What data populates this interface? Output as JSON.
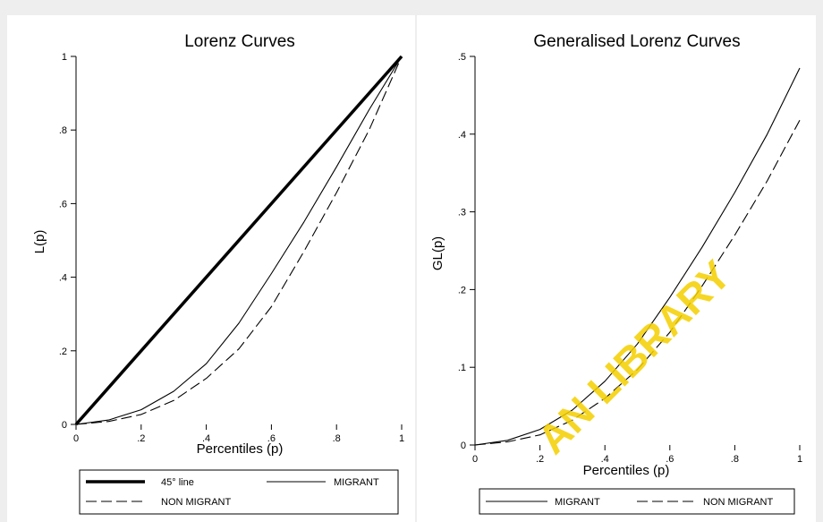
{
  "chart_data": [
    {
      "type": "line",
      "title": "Lorenz Curves",
      "xlabel": "Percentiles (p)",
      "ylabel": "L(p)",
      "xlim": [
        0,
        1
      ],
      "ylim": [
        0,
        1
      ],
      "xticks": [
        0,
        0.2,
        0.4,
        0.6,
        0.8,
        1
      ],
      "xtick_labels": [
        "0",
        ".2",
        ".4",
        ".6",
        ".8",
        "1"
      ],
      "yticks": [
        0,
        0.2,
        0.4,
        0.6,
        0.8,
        1
      ],
      "ytick_labels": [
        "0",
        ".2",
        ".4",
        ".6",
        ".8",
        "1"
      ],
      "grid": false,
      "legend_placement": "bottom",
      "series": [
        {
          "name": "45° line",
          "style": "thick-solid",
          "x": [
            0,
            1
          ],
          "y": [
            0,
            1
          ]
        },
        {
          "name": "MIGRANT",
          "style": "solid",
          "x": [
            0,
            0.1,
            0.2,
            0.3,
            0.4,
            0.5,
            0.6,
            0.7,
            0.8,
            0.9,
            1
          ],
          "y": [
            0,
            0.012,
            0.04,
            0.09,
            0.165,
            0.275,
            0.41,
            0.55,
            0.7,
            0.855,
            1
          ]
        },
        {
          "name": "NON MIGRANT",
          "style": "dashed",
          "x": [
            0,
            0.1,
            0.2,
            0.3,
            0.4,
            0.5,
            0.6,
            0.7,
            0.8,
            0.9,
            1
          ],
          "y": [
            0,
            0.008,
            0.027,
            0.065,
            0.125,
            0.205,
            0.32,
            0.47,
            0.63,
            0.8,
            1
          ]
        }
      ]
    },
    {
      "type": "line",
      "title": "Generalised Lorenz Curves",
      "xlabel": "Percentiles (p)",
      "ylabel": "GL(p)",
      "xlim": [
        0,
        1
      ],
      "ylim": [
        0,
        0.5
      ],
      "xticks": [
        0,
        0.2,
        0.4,
        0.6,
        0.8,
        1
      ],
      "xtick_labels": [
        "0",
        ".2",
        ".4",
        ".6",
        ".8",
        "1"
      ],
      "yticks": [
        0,
        0.1,
        0.2,
        0.3,
        0.4,
        0.5
      ],
      "ytick_labels": [
        "0",
        ".1",
        ".2",
        ".3",
        ".4",
        ".5"
      ],
      "grid": false,
      "legend_placement": "bottom",
      "series": [
        {
          "name": "MIGRANT",
          "style": "solid",
          "x": [
            0,
            0.1,
            0.2,
            0.3,
            0.4,
            0.5,
            0.6,
            0.7,
            0.8,
            0.9,
            1
          ],
          "y": [
            0,
            0.006,
            0.02,
            0.045,
            0.082,
            0.13,
            0.19,
            0.255,
            0.325,
            0.4,
            0.485
          ]
        },
        {
          "name": "NON MIGRANT",
          "style": "dashed",
          "x": [
            0,
            0.1,
            0.2,
            0.3,
            0.4,
            0.5,
            0.6,
            0.7,
            0.8,
            0.9,
            1
          ],
          "y": [
            0,
            0.004,
            0.013,
            0.032,
            0.06,
            0.097,
            0.145,
            0.205,
            0.27,
            0.34,
            0.418
          ]
        }
      ]
    }
  ],
  "watermark": {
    "visible_text": "AN LIBRARY",
    "color": "#f5d000"
  },
  "colors": {
    "background": "#eeeeee",
    "panel": "#ffffff",
    "ink": "#000000"
  }
}
